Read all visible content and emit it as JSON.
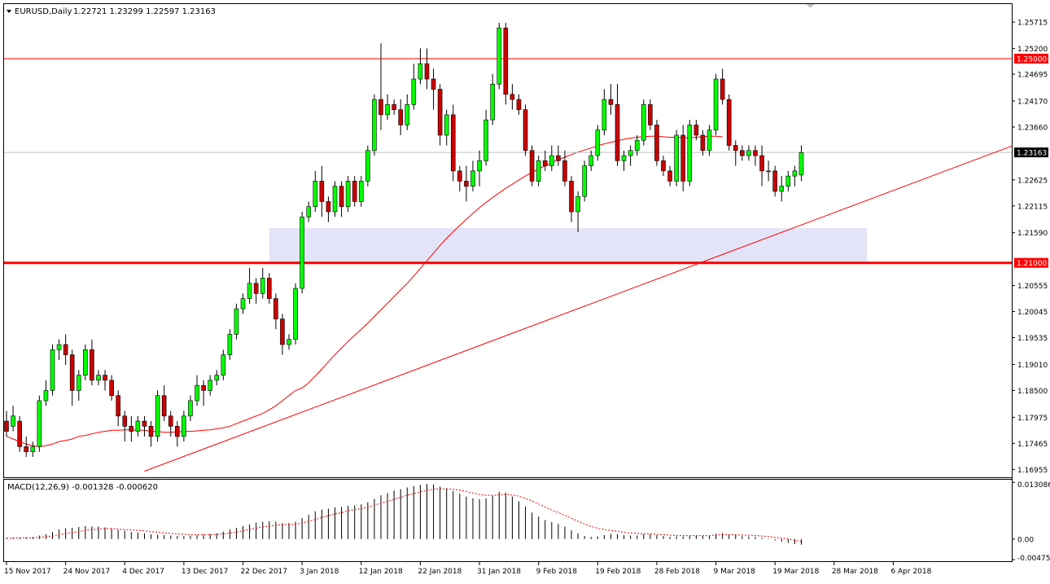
{
  "header": {
    "symbol": "EURUSD,Daily",
    "ohlc": "1.22721 1.23299 1.22597 1.23163"
  },
  "indicator": {
    "label": "MACD(12,26,9) -0.001328 -0.000620"
  },
  "colors": {
    "bull": "#00ff00",
    "bear": "#cc0000",
    "level": "#ff0000",
    "zone": "#e4e4f8",
    "macd_signal": "#ff0000",
    "macd_bars": "#000000",
    "tag_bg": "#ff0000",
    "price_tag_bg": "#000000"
  },
  "chart_data": [
    {
      "type": "candlestick",
      "title": "EURUSD,Daily",
      "ylim": [
        1.168,
        1.2602
      ],
      "y_ticks": [
        "1.25715",
        "1.25200",
        "1.24695",
        "1.24170",
        "1.23660",
        "1.22625",
        "1.22115",
        "1.21590",
        "1.20555",
        "1.20045",
        "1.19535",
        "1.19010",
        "1.18500",
        "1.17975",
        "1.17465",
        "1.16955"
      ],
      "x_ticks": [
        "15 Nov 2017",
        "24 Nov 2017",
        "4 Dec 2017",
        "13 Dec 2017",
        "22 Dec 2017",
        "3 Jan 2018",
        "12 Jan 2018",
        "22 Jan 2018",
        "31 Jan 2018",
        "9 Feb 2018",
        "19 Feb 2018",
        "28 Feb 2018",
        "9 Mar 2018",
        "19 Mar 2018",
        "28 Mar 2018",
        "6 Apr 2018"
      ],
      "x_tick_index": [
        0,
        9,
        18,
        27,
        36,
        45,
        54,
        63,
        72,
        81,
        90,
        99,
        108,
        117,
        126,
        135
      ],
      "horizontal_levels": [
        {
          "price": 1.25,
          "label": "1.25000"
        },
        {
          "price": 1.21,
          "label": "1.21000"
        }
      ],
      "current_price": {
        "price": 1.23163,
        "label": "1.23163"
      },
      "zone": {
        "from_index": 40,
        "to_index": 131,
        "low": 1.21,
        "high": 1.2168
      },
      "trendline": {
        "start_index": 21,
        "start_price": 1.1692,
        "end_index": 173,
        "end_price": 1.2425
      },
      "moving_average": [
        1.176,
        1.1755,
        1.175,
        1.1745,
        1.1742,
        1.174,
        1.1742,
        1.1745,
        1.175,
        1.1752,
        1.1755,
        1.176,
        1.1762,
        1.1765,
        1.1768,
        1.177,
        1.1772,
        1.1772,
        1.1773,
        1.1773,
        1.1772,
        1.1772,
        1.177,
        1.177,
        1.1768,
        1.1768,
        1.1769,
        1.177,
        1.177,
        1.1771,
        1.1772,
        1.1773,
        1.1775,
        1.1777,
        1.178,
        1.1785,
        1.179,
        1.1795,
        1.18,
        1.1805,
        1.1812,
        1.182,
        1.183,
        1.184,
        1.185,
        1.1855,
        1.1865,
        1.1878,
        1.1892,
        1.1906,
        1.192,
        1.1933,
        1.1946,
        1.1958,
        1.197,
        1.1982,
        1.1995,
        1.2008,
        1.2021,
        1.2034,
        1.2047,
        1.206,
        1.2074,
        1.2089,
        1.2104,
        1.2119,
        1.2134,
        1.2148,
        1.2161,
        1.2173,
        1.2185,
        1.2197,
        1.2208,
        1.2218,
        1.2228,
        1.2237,
        1.2246,
        1.2254,
        1.2262,
        1.227,
        1.2277,
        1.2284,
        1.229,
        1.2296,
        1.2302,
        1.2307,
        1.2312,
        1.2317,
        1.2321,
        1.2325,
        1.2329,
        1.2333,
        1.2336,
        1.2339,
        1.2342,
        1.2344,
        1.2346,
        1.2347,
        1.2348,
        1.2348,
        1.2347,
        1.2346,
        1.2346,
        1.2345,
        1.2345,
        1.2346,
        1.2347,
        1.2348,
        1.2348,
        1.2347
      ],
      "candles": [
        [
          1.179,
          1.177,
          1.181,
          1.176
        ],
        [
          1.178,
          1.18,
          1.182,
          1.177
        ],
        [
          1.179,
          1.174,
          1.18,
          1.173
        ],
        [
          1.174,
          1.173,
          1.176,
          1.172
        ],
        [
          1.173,
          1.174,
          1.175,
          1.172
        ],
        [
          1.174,
          1.183,
          1.184,
          1.173
        ],
        [
          1.183,
          1.185,
          1.187,
          1.182
        ],
        [
          1.185,
          1.193,
          1.194,
          1.184
        ],
        [
          1.193,
          1.194,
          1.195,
          1.191
        ],
        [
          1.194,
          1.192,
          1.196,
          1.19
        ],
        [
          1.192,
          1.185,
          1.193,
          1.182
        ],
        [
          1.185,
          1.188,
          1.189,
          1.183
        ],
        [
          1.188,
          1.193,
          1.194,
          1.187
        ],
        [
          1.193,
          1.187,
          1.195,
          1.186
        ],
        [
          1.187,
          1.188,
          1.189,
          1.186
        ],
        [
          1.188,
          1.187,
          1.189,
          1.185
        ],
        [
          1.187,
          1.184,
          1.188,
          1.183
        ],
        [
          1.184,
          1.18,
          1.185,
          1.178
        ],
        [
          1.18,
          1.178,
          1.181,
          1.175
        ],
        [
          1.178,
          1.177,
          1.18,
          1.175
        ],
        [
          1.177,
          1.179,
          1.18,
          1.176
        ],
        [
          1.179,
          1.178,
          1.18,
          1.176
        ],
        [
          1.178,
          1.176,
          1.179,
          1.174
        ],
        [
          1.176,
          1.184,
          1.185,
          1.175
        ],
        [
          1.184,
          1.18,
          1.186,
          1.179
        ],
        [
          1.18,
          1.178,
          1.181,
          1.176
        ],
        [
          1.178,
          1.176,
          1.179,
          1.174
        ],
        [
          1.176,
          1.18,
          1.181,
          1.175
        ],
        [
          1.18,
          1.183,
          1.184,
          1.179
        ],
        [
          1.183,
          1.186,
          1.188,
          1.182
        ],
        [
          1.186,
          1.185,
          1.187,
          1.182
        ],
        [
          1.185,
          1.187,
          1.188,
          1.184
        ],
        [
          1.187,
          1.188,
          1.189,
          1.186
        ],
        [
          1.188,
          1.192,
          1.193,
          1.187
        ],
        [
          1.192,
          1.196,
          1.197,
          1.191
        ],
        [
          1.196,
          1.201,
          1.202,
          1.195
        ],
        [
          1.201,
          1.203,
          1.204,
          1.2
        ],
        [
          1.203,
          1.206,
          1.209,
          1.202
        ],
        [
          1.206,
          1.204,
          1.207,
          1.202
        ],
        [
          1.204,
          1.207,
          1.209,
          1.203
        ],
        [
          1.207,
          1.203,
          1.208,
          1.202
        ],
        [
          1.203,
          1.199,
          1.204,
          1.197
        ],
        [
          1.199,
          1.194,
          1.2,
          1.192
        ],
        [
          1.194,
          1.195,
          1.196,
          1.193
        ],
        [
          1.195,
          1.205,
          1.206,
          1.194
        ],
        [
          1.205,
          1.219,
          1.22,
          1.204
        ],
        [
          1.219,
          1.221,
          1.222,
          1.218
        ],
        [
          1.221,
          1.226,
          1.228,
          1.22
        ],
        [
          1.226,
          1.222,
          1.229,
          1.219
        ],
        [
          1.222,
          1.22,
          1.223,
          1.218
        ],
        [
          1.22,
          1.225,
          1.226,
          1.219
        ],
        [
          1.225,
          1.221,
          1.226,
          1.219
        ],
        [
          1.221,
          1.226,
          1.227,
          1.22
        ],
        [
          1.226,
          1.222,
          1.227,
          1.221
        ],
        [
          1.222,
          1.226,
          1.227,
          1.221
        ],
        [
          1.226,
          1.232,
          1.233,
          1.225
        ],
        [
          1.232,
          1.242,
          1.243,
          1.231
        ],
        [
          1.242,
          1.239,
          1.253,
          1.236
        ],
        [
          1.239,
          1.241,
          1.243,
          1.238
        ],
        [
          1.241,
          1.24,
          1.242,
          1.239
        ],
        [
          1.24,
          1.237,
          1.242,
          1.235
        ],
        [
          1.237,
          1.241,
          1.243,
          1.236
        ],
        [
          1.241,
          1.246,
          1.249,
          1.24
        ],
        [
          1.246,
          1.249,
          1.252,
          1.245
        ],
        [
          1.249,
          1.246,
          1.252,
          1.244
        ],
        [
          1.246,
          1.244,
          1.248,
          1.24
        ],
        [
          1.244,
          1.235,
          1.245,
          1.233
        ],
        [
          1.235,
          1.239,
          1.24,
          1.233
        ],
        [
          1.239,
          1.228,
          1.241,
          1.226
        ],
        [
          1.228,
          1.226,
          1.229,
          1.224
        ],
        [
          1.226,
          1.225,
          1.229,
          1.222
        ],
        [
          1.225,
          1.228,
          1.23,
          1.224
        ],
        [
          1.228,
          1.23,
          1.232,
          1.225
        ],
        [
          1.23,
          1.238,
          1.24,
          1.229
        ],
        [
          1.238,
          1.245,
          1.247,
          1.237
        ],
        [
          1.245,
          1.256,
          1.257,
          1.244
        ],
        [
          1.256,
          1.243,
          1.257,
          1.241
        ],
        [
          1.243,
          1.242,
          1.245,
          1.24
        ],
        [
          1.242,
          1.24,
          1.243,
          1.239
        ],
        [
          1.24,
          1.232,
          1.241,
          1.231
        ],
        [
          1.232,
          1.226,
          1.233,
          1.225
        ],
        [
          1.226,
          1.23,
          1.231,
          1.225
        ],
        [
          1.23,
          1.229,
          1.232,
          1.228
        ],
        [
          1.229,
          1.231,
          1.233,
          1.228
        ],
        [
          1.231,
          1.23,
          1.233,
          1.229
        ],
        [
          1.23,
          1.226,
          1.232,
          1.225
        ],
        [
          1.226,
          1.22,
          1.227,
          1.218
        ],
        [
          1.22,
          1.223,
          1.224,
          1.216
        ],
        [
          1.223,
          1.229,
          1.23,
          1.222
        ],
        [
          1.229,
          1.231,
          1.232,
          1.228
        ],
        [
          1.231,
          1.236,
          1.237,
          1.23
        ],
        [
          1.236,
          1.242,
          1.244,
          1.235
        ],
        [
          1.242,
          1.241,
          1.245,
          1.239
        ],
        [
          1.241,
          1.23,
          1.245,
          1.229
        ],
        [
          1.23,
          1.231,
          1.232,
          1.228
        ],
        [
          1.231,
          1.232,
          1.233,
          1.229
        ],
        [
          1.232,
          1.234,
          1.235,
          1.231
        ],
        [
          1.234,
          1.241,
          1.242,
          1.233
        ],
        [
          1.241,
          1.237,
          1.242,
          1.236
        ],
        [
          1.237,
          1.23,
          1.238,
          1.229
        ],
        [
          1.23,
          1.228,
          1.231,
          1.227
        ],
        [
          1.228,
          1.226,
          1.229,
          1.225
        ],
        [
          1.226,
          1.235,
          1.236,
          1.225
        ],
        [
          1.235,
          1.226,
          1.237,
          1.224
        ],
        [
          1.226,
          1.237,
          1.238,
          1.225
        ],
        [
          1.237,
          1.235,
          1.238,
          1.234
        ],
        [
          1.235,
          1.232,
          1.236,
          1.231
        ],
        [
          1.232,
          1.236,
          1.237,
          1.231
        ],
        [
          1.236,
          1.246,
          1.247,
          1.235
        ],
        [
          1.246,
          1.242,
          1.248,
          1.241
        ],
        [
          1.242,
          1.233,
          1.243,
          1.232
        ],
        [
          1.233,
          1.232,
          1.234,
          1.229
        ],
        [
          1.232,
          1.231,
          1.233,
          1.23
        ],
        [
          1.231,
          1.232,
          1.233,
          1.23
        ],
        [
          1.232,
          1.231,
          1.233,
          1.229
        ],
        [
          1.231,
          1.228,
          1.233,
          1.225
        ],
        [
          1.228,
          1.228,
          1.23,
          1.226
        ],
        [
          1.228,
          1.224,
          1.229,
          1.223
        ],
        [
          1.224,
          1.225,
          1.227,
          1.222
        ],
        [
          1.225,
          1.227,
          1.228,
          1.224
        ],
        [
          1.227,
          1.228,
          1.229,
          1.225
        ],
        [
          1.2272,
          1.2316,
          1.233,
          1.226
        ]
      ]
    },
    {
      "type": "bar",
      "title": "MACD(12,26,9) -0.001328 -0.000620",
      "ylim": [
        -0.0053,
        0.0135
      ],
      "y_ticks": [
        "0.013086",
        "0.00",
        "-0.004756"
      ],
      "macd": [
        0.0002,
        0.0003,
        0.0003,
        0.0004,
        0.0005,
        0.0008,
        0.0011,
        0.0016,
        0.0022,
        0.0025,
        0.0026,
        0.0028,
        0.003,
        0.0029,
        0.0029,
        0.0027,
        0.0024,
        0.0021,
        0.0019,
        0.0016,
        0.0015,
        0.0013,
        0.0011,
        0.001,
        0.0009,
        0.0008,
        0.0007,
        0.0007,
        0.0008,
        0.0009,
        0.001,
        0.0011,
        0.0013,
        0.0017,
        0.0022,
        0.0026,
        0.003,
        0.0034,
        0.0038,
        0.004,
        0.0041,
        0.004,
        0.0037,
        0.0037,
        0.004,
        0.0048,
        0.0056,
        0.0064,
        0.0068,
        0.007,
        0.0073,
        0.0074,
        0.0077,
        0.0078,
        0.008,
        0.0085,
        0.0093,
        0.0101,
        0.0106,
        0.0112,
        0.0115,
        0.0119,
        0.0122,
        0.0125,
        0.0127,
        0.0126,
        0.0121,
        0.0117,
        0.0111,
        0.0105,
        0.0098,
        0.0094,
        0.0092,
        0.0094,
        0.01,
        0.0109,
        0.0107,
        0.0098,
        0.0087,
        0.0075,
        0.0061,
        0.0052,
        0.0044,
        0.0039,
        0.0035,
        0.0029,
        0.002,
        0.0013,
        0.0007,
        0.0005,
        0.0006,
        0.0009,
        0.0012,
        0.0011,
        0.0009,
        0.0008,
        0.0008,
        0.0011,
        0.0011,
        0.0009,
        0.0007,
        0.0005,
        0.0006,
        0.0006,
        0.0008,
        0.0008,
        0.0007,
        0.0008,
        0.0012,
        0.0014,
        0.0011,
        0.0009,
        0.0007,
        0.0006,
        0.0005,
        0.0003,
        0.0001,
        -0.0003,
        -0.0006,
        -0.0009,
        -0.0012,
        -0.0013
      ],
      "signal": [
        0.0002,
        0.0002,
        0.0003,
        0.0003,
        0.0003,
        0.0004,
        0.0005,
        0.0007,
        0.001,
        0.0013,
        0.0015,
        0.0017,
        0.002,
        0.0022,
        0.0023,
        0.0024,
        0.0024,
        0.0023,
        0.0022,
        0.0021,
        0.002,
        0.0019,
        0.0017,
        0.0016,
        0.0014,
        0.0013,
        0.0012,
        0.0011,
        0.001,
        0.001,
        0.001,
        0.001,
        0.0011,
        0.0012,
        0.0014,
        0.0016,
        0.0019,
        0.0022,
        0.0025,
        0.0028,
        0.003,
        0.0032,
        0.0033,
        0.0033,
        0.0034,
        0.0037,
        0.0041,
        0.0045,
        0.005,
        0.0054,
        0.0058,
        0.0061,
        0.0065,
        0.0068,
        0.007,
        0.0074,
        0.0078,
        0.0083,
        0.0087,
        0.0092,
        0.0096,
        0.0101,
        0.0105,
        0.0109,
        0.0112,
        0.0115,
        0.0116,
        0.0116,
        0.0115,
        0.0113,
        0.011,
        0.0106,
        0.0103,
        0.0101,
        0.0101,
        0.0102,
        0.0103,
        0.0102,
        0.0099,
        0.0094,
        0.0088,
        0.0081,
        0.0074,
        0.0067,
        0.0061,
        0.0055,
        0.0048,
        0.0041,
        0.0035,
        0.0029,
        0.0025,
        0.0022,
        0.002,
        0.0018,
        0.0016,
        0.0014,
        0.0013,
        0.0012,
        0.0012,
        0.0011,
        0.001,
        0.0009,
        0.0008,
        0.0008,
        0.0008,
        0.0008,
        0.0008,
        0.0008,
        0.0009,
        0.001,
        0.001,
        0.001,
        0.0009,
        0.0009,
        0.0008,
        0.0007,
        0.0006,
        0.0004,
        0.0002,
        0.0,
        -0.0003,
        -0.0006
      ]
    }
  ]
}
